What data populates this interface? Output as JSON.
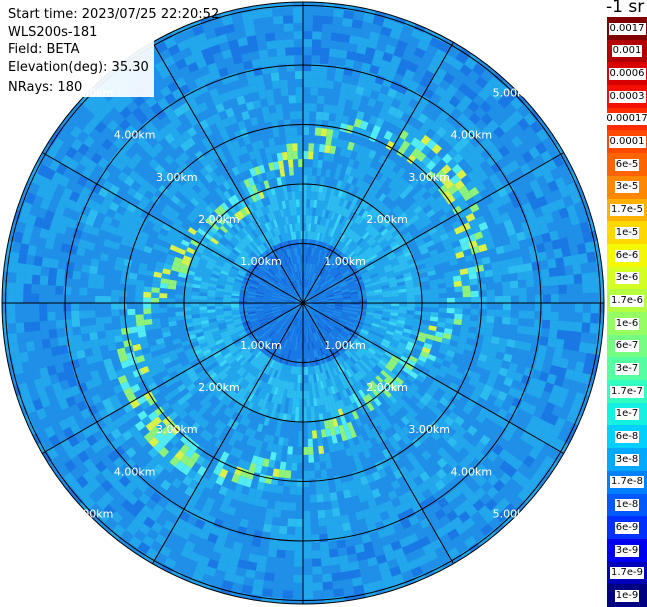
{
  "info": {
    "start_time": "Start time: 2023/07/25 22:20:52",
    "instrument": "WLS200s-181",
    "field": "Field: BETA",
    "elevation": "Elevation(deg): 35.30",
    "nrays": "NRays: 180"
  },
  "colorbar": {
    "unit": "-1 sr",
    "labels": [
      "0.0017",
      "0.001",
      "0.0006",
      "0.0003",
      "0.00017",
      "0.0001",
      "6e-5",
      "3e-5",
      "1.7e-5",
      "1e-5",
      "6e-6",
      "3e-6",
      "1.7e-6",
      "1e-6",
      "6e-7",
      "3e-7",
      "1.7e-7",
      "1e-7",
      "6e-8",
      "3e-8",
      "1.7e-8",
      "1e-8",
      "6e-9",
      "3e-9",
      "1.7e-9",
      "1e-9"
    ],
    "colors": [
      "#800000",
      "#b00000",
      "#d80000",
      "#f41000",
      "#ff2c00",
      "#ff4800",
      "#ff6400",
      "#ff8800",
      "#ffb000",
      "#ffd800",
      "#f4f802",
      "#d4ff22",
      "#b4ff42",
      "#94ff62",
      "#74ff82",
      "#54ffa2",
      "#34ffc2",
      "#14f0e2",
      "#00d0ff",
      "#00a8ff",
      "#0080ff",
      "#0058ff",
      "#0030ff",
      "#0000f0",
      "#0000b8",
      "#000080"
    ]
  },
  "range_labels": [
    "1.00km",
    "2.00km",
    "3.00km",
    "4.00km",
    "5.00km"
  ]
}
